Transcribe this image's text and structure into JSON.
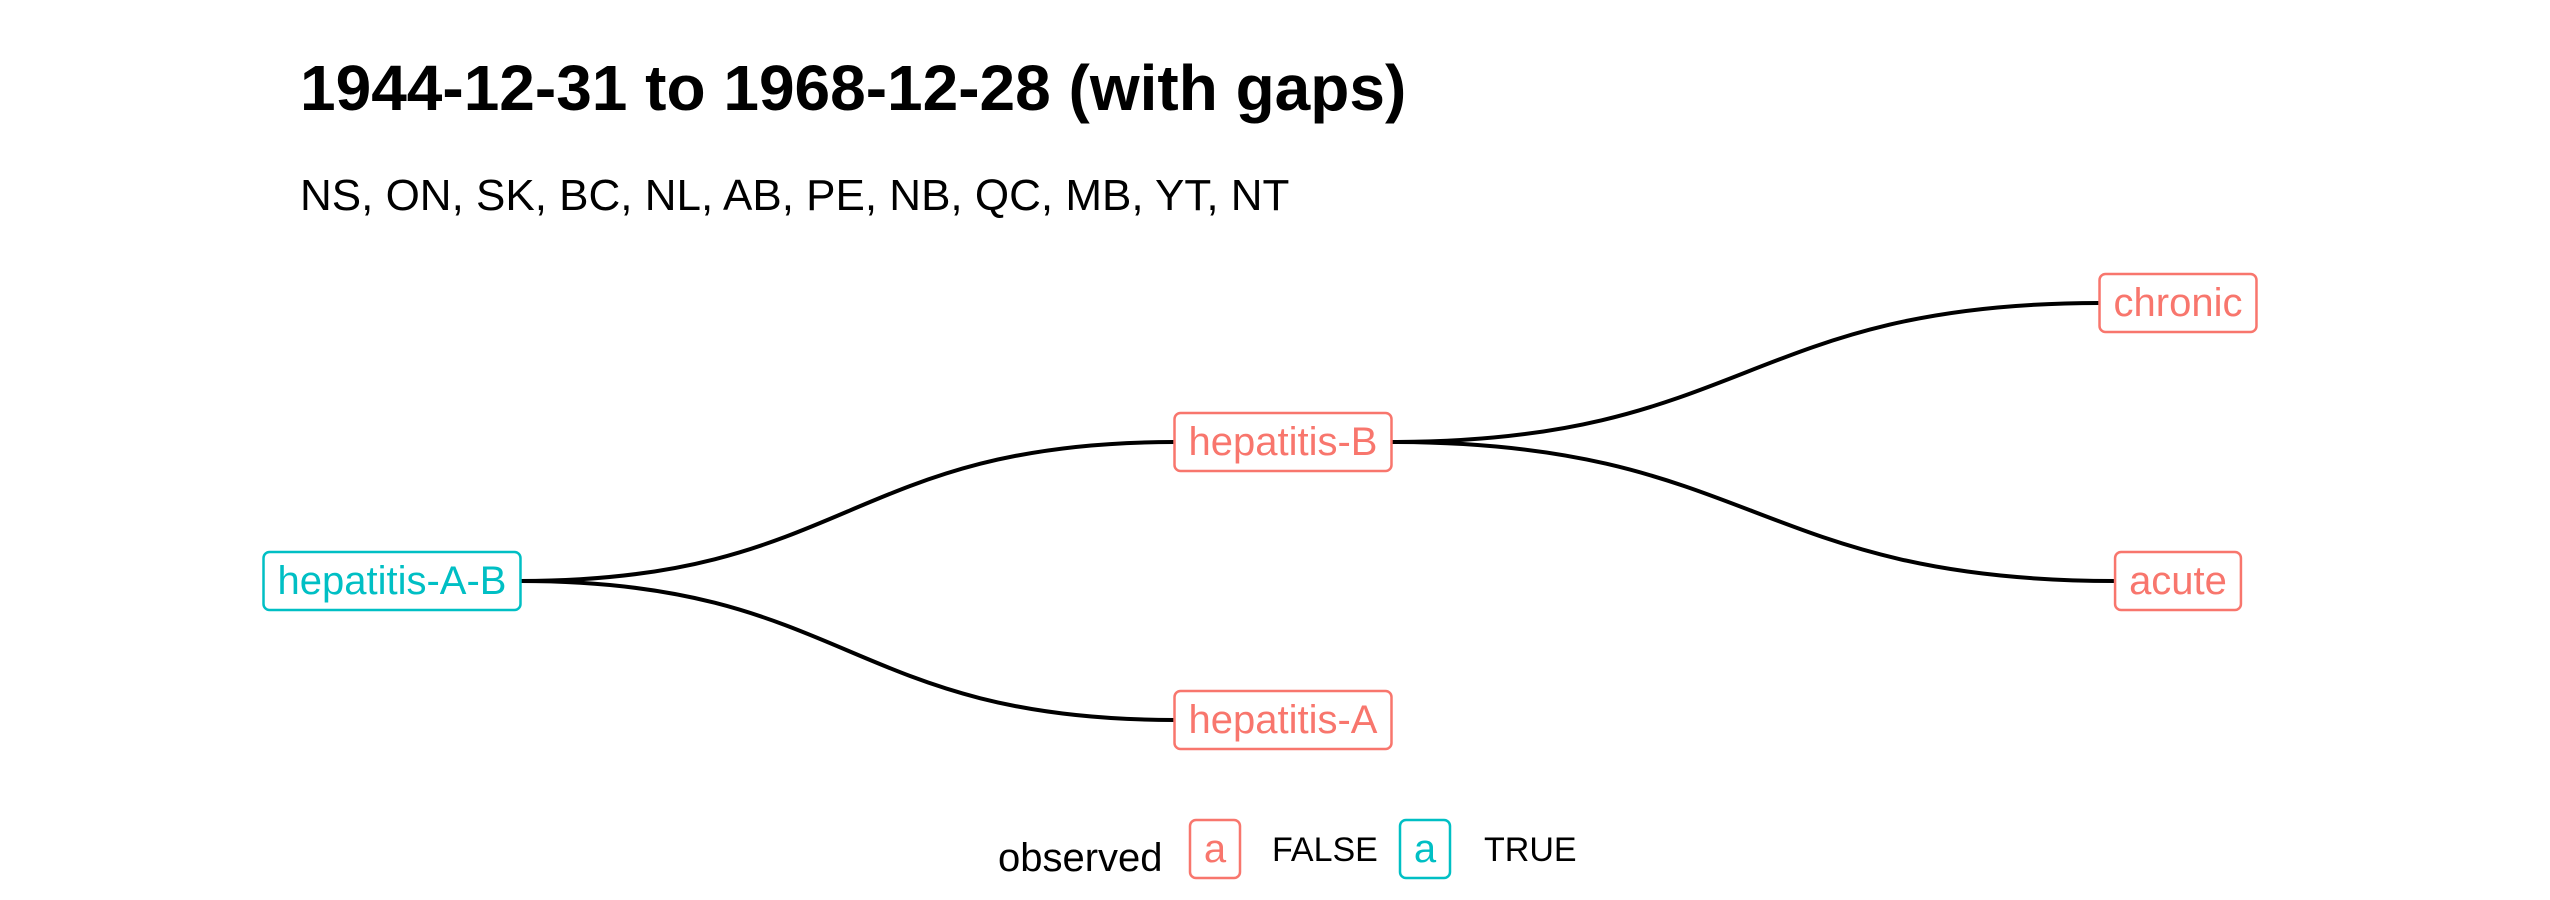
{
  "title": "1944-12-31 to 1968-12-28 (with gaps)",
  "subtitle": "NS, ON, SK, BC, NL, AB, PE, NB, QC, MB, YT, NT",
  "colors": {
    "observed_false": "#F8766D",
    "observed_true": "#00BFC4",
    "edge": "#000000"
  },
  "nodes": [
    {
      "id": "hepatitis-A-B",
      "label": "hepatitis-A-B",
      "observed": true
    },
    {
      "id": "hepatitis-B",
      "label": "hepatitis-B",
      "observed": false
    },
    {
      "id": "hepatitis-A",
      "label": "hepatitis-A",
      "observed": false
    },
    {
      "id": "chronic",
      "label": "chronic",
      "observed": false
    },
    {
      "id": "acute",
      "label": "acute",
      "observed": false
    }
  ],
  "edges": [
    {
      "from": "hepatitis-A-B",
      "to": "hepatitis-B"
    },
    {
      "from": "hepatitis-A-B",
      "to": "hepatitis-A"
    },
    {
      "from": "hepatitis-B",
      "to": "chronic"
    },
    {
      "from": "hepatitis-B",
      "to": "acute"
    }
  ],
  "legend": {
    "title": "observed",
    "glyph": "a",
    "items": [
      {
        "label": "FALSE",
        "color": "#F8766D"
      },
      {
        "label": "TRUE",
        "color": "#00BFC4"
      }
    ]
  }
}
